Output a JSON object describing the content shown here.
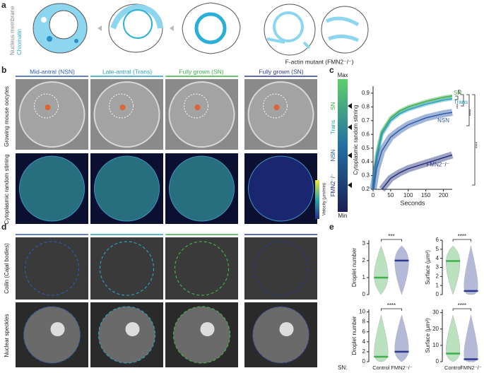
{
  "panel_a": {
    "label": "a",
    "legend": [
      "Nucleus membrane",
      "Chromatin"
    ],
    "mutant_title": "F-actin mutant (FMN2⁻/⁻)"
  },
  "panel_b": {
    "label": "b",
    "columns": [
      "Mid-antral (NSN)",
      "Late-antral (Trans)",
      "Fully grown (SN)",
      "Fully grown (SN)"
    ],
    "row_labels": [
      "Growing mouse oocytes",
      "Cytoplasmic random stirring"
    ],
    "colorbar_label": "Velocity (µm/min)"
  },
  "panel_c": {
    "label": "c",
    "colorbar_ends": [
      "Max",
      "Min"
    ],
    "colorbar_marks": [
      "SN",
      "Trans",
      "NSN",
      "FMN2⁻/⁻"
    ],
    "significance": [
      "***",
      "ns",
      "****",
      "****"
    ],
    "chart_data": {
      "type": "line",
      "xlabel": "Seconds",
      "ylabel": "Cytoplasmic random stirring",
      "x": [
        0,
        10,
        25,
        50,
        75,
        100,
        150,
        200,
        225
      ],
      "xlim": [
        0,
        225
      ],
      "ylim": [
        0.2,
        0.92
      ],
      "xticks": [
        0,
        50,
        100,
        150,
        200
      ],
      "yticks": [
        0.2,
        0.3,
        0.4,
        0.5,
        0.6,
        0.7,
        0.8,
        0.9
      ],
      "series": [
        {
          "name": "SN",
          "color": "#3fae4b",
          "values": [
            0.2,
            0.45,
            0.62,
            0.72,
            0.77,
            0.8,
            0.84,
            0.87,
            0.88
          ]
        },
        {
          "name": "Trans",
          "color": "#2a9fb8",
          "values": [
            0.2,
            0.43,
            0.6,
            0.7,
            0.75,
            0.78,
            0.82,
            0.85,
            0.86
          ]
        },
        {
          "name": "NSN",
          "color": "#2f5aa8",
          "values": [
            0.2,
            0.35,
            0.48,
            0.58,
            0.63,
            0.67,
            0.72,
            0.75,
            0.76
          ]
        },
        {
          "name": "FMN2⁻/⁻",
          "color": "#27307a",
          "values": [
            null,
            null,
            0.2,
            0.28,
            0.32,
            0.35,
            0.39,
            0.43,
            0.45
          ]
        }
      ]
    }
  },
  "panel_d": {
    "label": "d",
    "row_labels": [
      "Coilin (Cajal bodies)",
      "Nuclear speckles"
    ]
  },
  "panel_e": {
    "label": "e",
    "prefix": "SN:",
    "categories": [
      "Control",
      "FMN2⁻/⁻"
    ],
    "colors": [
      "#3fae4b",
      "#2b3a8f"
    ],
    "plots": [
      {
        "type": "violin",
        "ylabel": "Droplet number",
        "ylim": [
          0,
          3.2
        ],
        "yticks": [
          0,
          1,
          2,
          3
        ],
        "medians": [
          1,
          2
        ],
        "significance": "***"
      },
      {
        "type": "violin",
        "ylabel": "Surface (µm²)",
        "ylim": [
          0,
          6
        ],
        "yticks": [
          0,
          1,
          2,
          3,
          4,
          5,
          6
        ],
        "medians": [
          3.7,
          0.4
        ],
        "significance": "****"
      },
      {
        "type": "violin",
        "ylabel": "Droplet number",
        "ylim": [
          0,
          10.5
        ],
        "yticks": [
          0,
          2,
          4,
          6,
          8,
          10
        ],
        "medians": [
          1,
          2
        ],
        "significance": "****"
      },
      {
        "type": "violin",
        "ylabel": "Surface (µm²)",
        "ylim": [
          0,
          32
        ],
        "yticks": [
          0,
          10,
          20,
          30
        ],
        "medians": [
          5,
          1.5
        ],
        "significance": "****"
      }
    ]
  }
}
